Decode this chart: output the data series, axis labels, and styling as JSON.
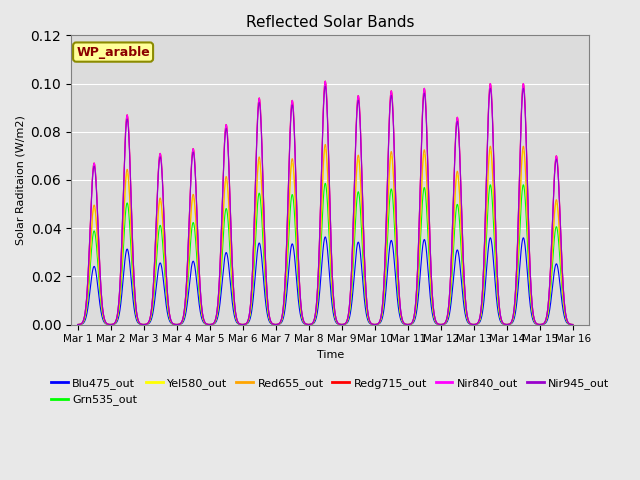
{
  "title": "Reflected Solar Bands",
  "xlabel": "Time",
  "ylabel": "Solar Raditaion (W/m2)",
  "ylim": [
    0,
    0.12
  ],
  "yticks": [
    0.0,
    0.02,
    0.04,
    0.06,
    0.08,
    0.1,
    0.12
  ],
  "annotation_text": "WP_arable",
  "annotation_color": "#8B0000",
  "annotation_bg": "#FFFF99",
  "annotation_border": "#8B8B00",
  "bg_color": "#E8E8E8",
  "plot_bg_color": "#DCDCDC",
  "series": [
    {
      "name": "Blu475_out",
      "color": "#0000FF",
      "scale": 0.36
    },
    {
      "name": "Grn535_out",
      "color": "#00FF00",
      "scale": 0.58
    },
    {
      "name": "Yel580_out",
      "color": "#FFFF00",
      "scale": 0.72
    },
    {
      "name": "Red655_out",
      "color": "#FFA500",
      "scale": 0.74
    },
    {
      "name": "Redg715_out",
      "color": "#FF0000",
      "scale": 1.0
    },
    {
      "name": "Nir840_out",
      "color": "#FF00FF",
      "scale": 1.0
    },
    {
      "name": "Nir945_out",
      "color": "#9900CC",
      "scale": 0.98
    }
  ],
  "day_peaks": [
    0.067,
    0.087,
    0.071,
    0.073,
    0.083,
    0.094,
    0.093,
    0.101,
    0.095,
    0.097,
    0.098,
    0.086,
    0.1,
    0.1,
    0.07
  ],
  "xtick_labels": [
    "Mar 1",
    "Mar 2",
    "Mar 3",
    "Mar 4",
    "Mar 5",
    "Mar 6",
    "Mar 7",
    "Mar 8",
    "Mar 9",
    "Mar 10",
    "Mar 11",
    "Mar 12",
    "Mar 13",
    "Mar 14",
    "Mar 15",
    "Mar 16"
  ],
  "xtick_positions": [
    0,
    1,
    2,
    3,
    4,
    5,
    6,
    7,
    8,
    9,
    10,
    11,
    12,
    13,
    14,
    15
  ]
}
